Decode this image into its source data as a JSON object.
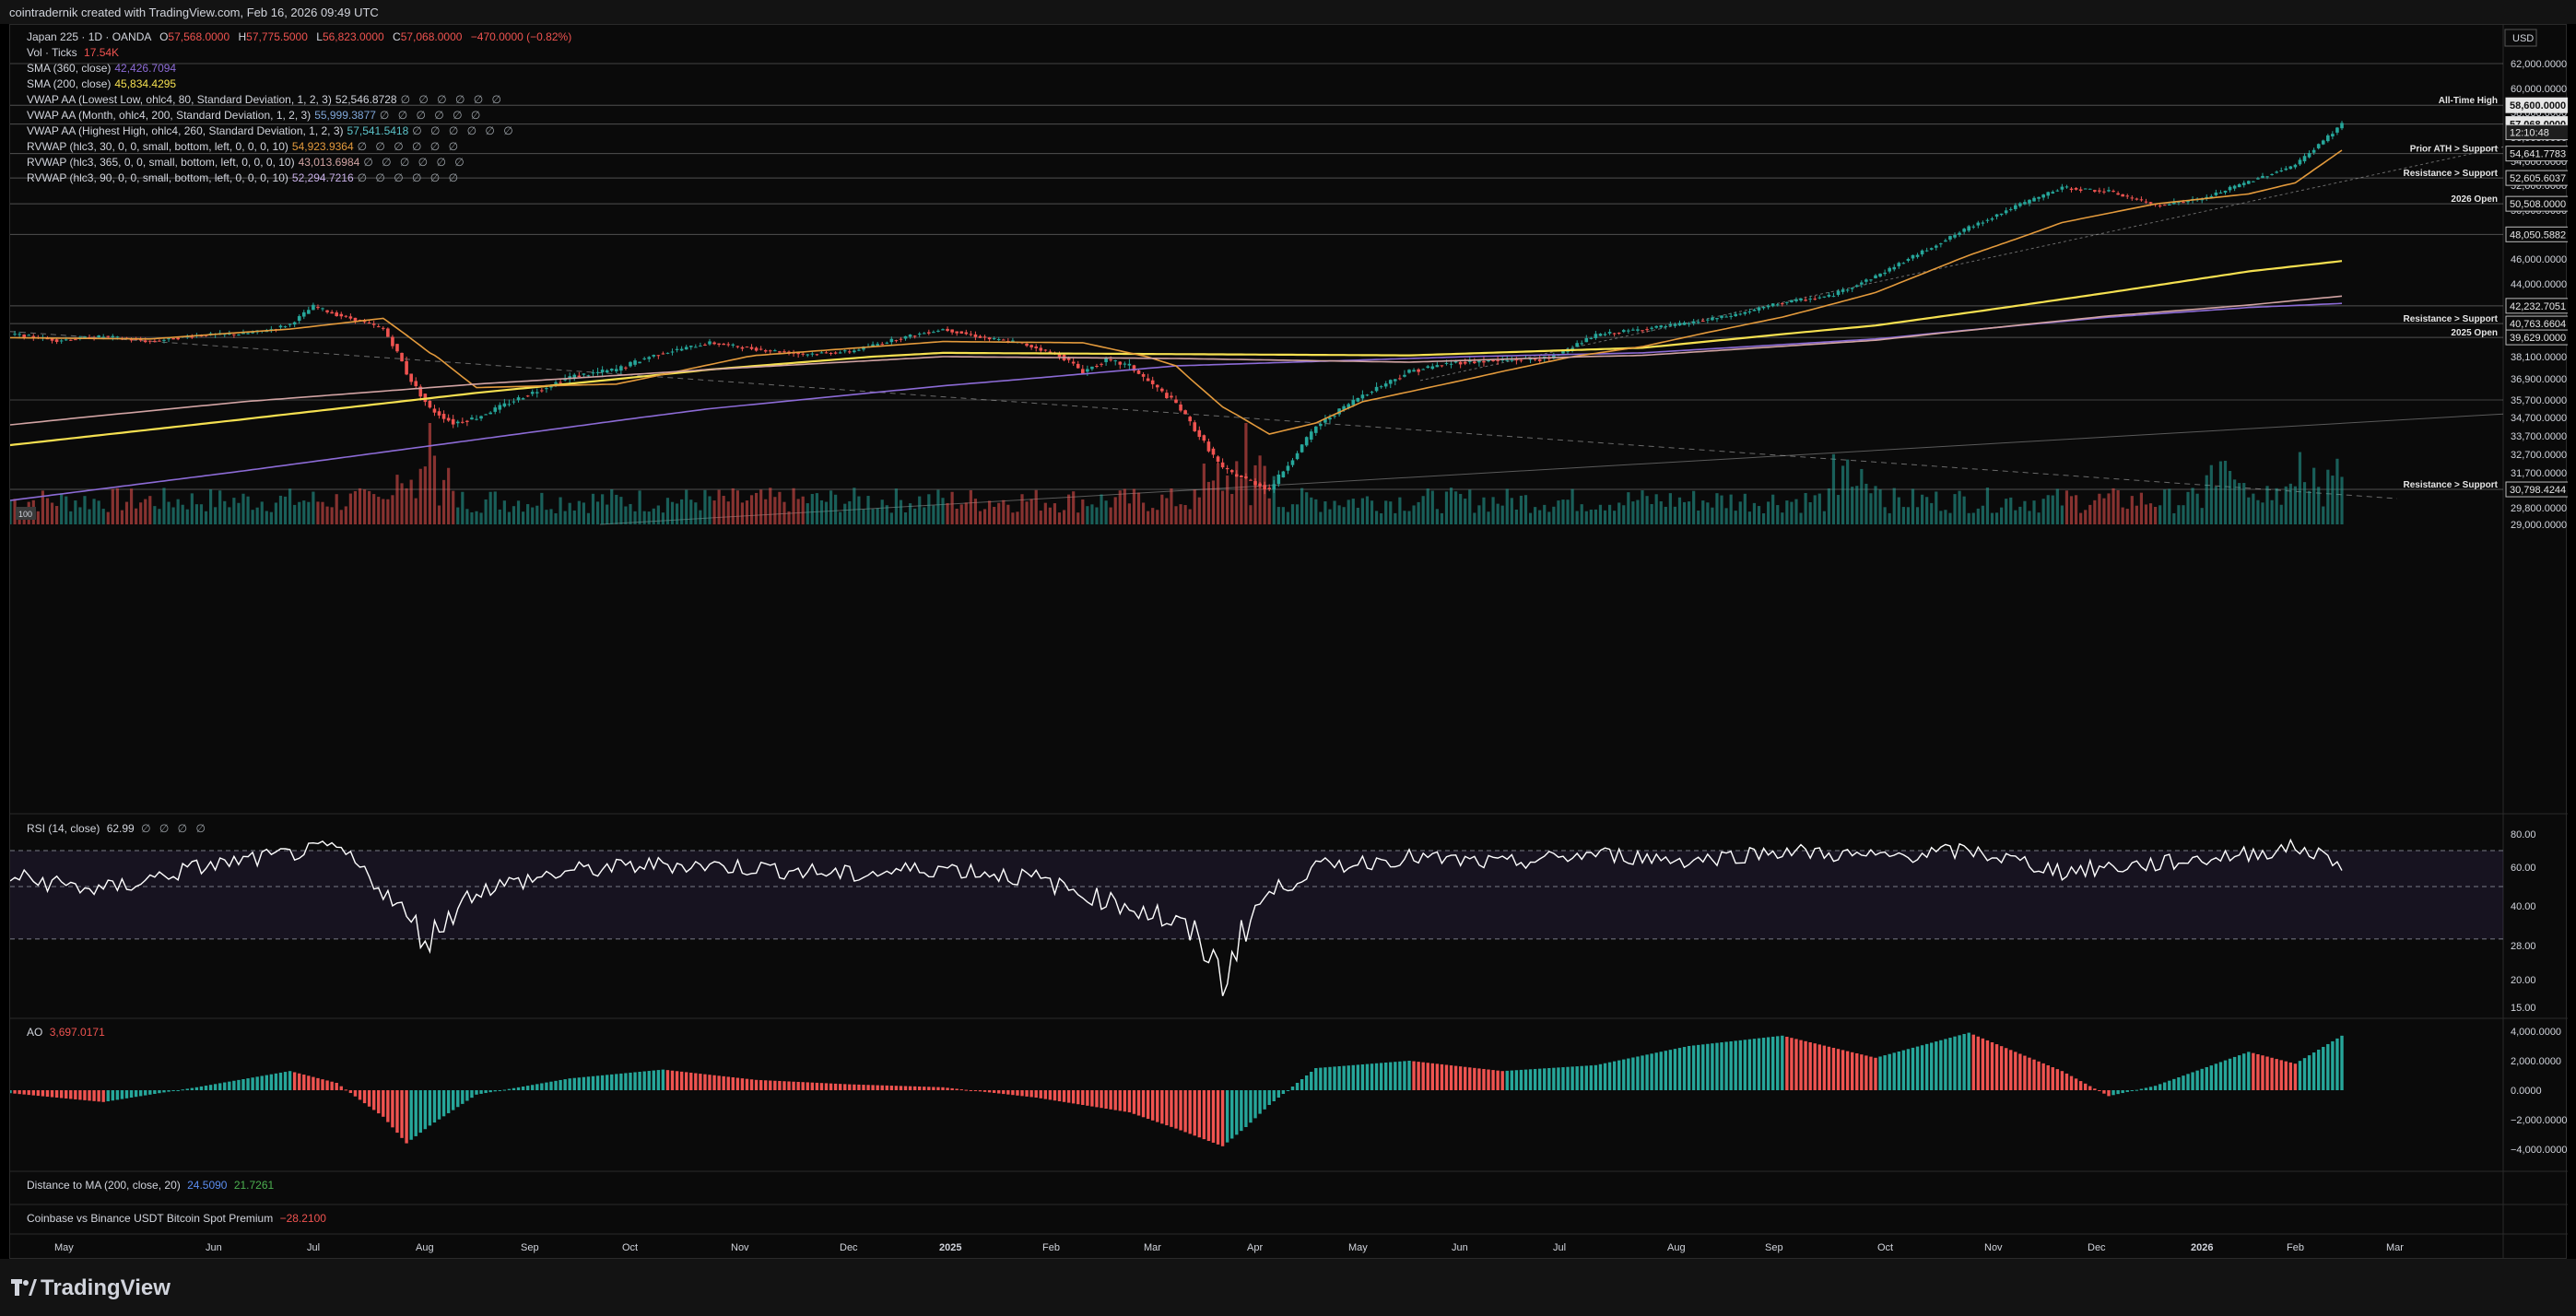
{
  "header": {
    "created": "cointradernik created with TradingView.com, Feb 16, 2026 09:49 UTC"
  },
  "currency": "USD",
  "ohlc": {
    "symbol": "Japan 225 · 1D · OANDA",
    "o_label": "O",
    "o": "57,568.0000",
    "h_label": "H",
    "h": "57,775.5000",
    "l_label": "L",
    "l": "56,823.0000",
    "c_label": "C",
    "c": "57,068.0000",
    "change": "−470.0000 (−0.82%)"
  },
  "vol": {
    "label": "Vol · Ticks",
    "value": "17.54K"
  },
  "indicators": [
    {
      "label": "SMA (360, close)",
      "value": "42,426.7094",
      "color": "#8c6bd6",
      "dots": ""
    },
    {
      "label": "SMA (200, close)",
      "value": "45,834.4295",
      "color": "#f5e050",
      "dots": ""
    },
    {
      "label": "VWAP AA (Lowest Low, ohlc4, 80, Standard Deviation, 1, 2, 3)",
      "value": "52,546.8728",
      "color": "#d1d4dc",
      "dots": "∅ ∅ ∅ ∅ ∅ ∅"
    },
    {
      "label": "VWAP AA (Month, ohlc4, 200, Standard Deviation, 1, 2, 3)",
      "value": "55,999.3877",
      "color": "#7fa6d8",
      "dots": "∅ ∅ ∅ ∅ ∅ ∅"
    },
    {
      "label": "VWAP AA (Highest High, ohlc4, 260, Standard Deviation, 1, 2, 3)",
      "value": "57,541.5418",
      "color": "#5cc3c9",
      "dots": "∅ ∅ ∅ ∅ ∅ ∅"
    },
    {
      "label": "RVWAP (hlc3, 30, 0, 0, small, bottom, left, 0, 0, 0, 10)",
      "value": "54,923.9364",
      "color": "#e39a3c",
      "dots": "∅ ∅ ∅ ∅ ∅ ∅"
    },
    {
      "label": "RVWAP (hlc3, 365, 0, 0, small, bottom, left, 0, 0, 0, 10)",
      "value": "43,013.6984",
      "color": "#d1a3a3",
      "dots": "∅ ∅ ∅ ∅ ∅ ∅"
    },
    {
      "label": "RVWAP (hlc3, 90, 0, 0, small, bottom, left, 0, 0, 0, 10)",
      "value": "52,294.7216",
      "color": "#c8b0e8",
      "dots": "∅ ∅ ∅ ∅ ∅ ∅"
    }
  ],
  "rsi": {
    "label": "RSI (14, close)",
    "value": "62.99",
    "dots": "∅ ∅ ∅ ∅"
  },
  "ao": {
    "label": "AO",
    "value": "3,697.0171"
  },
  "distance_ma": {
    "label": "Distance to MA (200, close, 20)",
    "v1": "24.5090",
    "v2": "21.7261"
  },
  "premium": {
    "label": "Coinbase vs Binance USDT Bitcoin Spot Premium",
    "value": "−28.2100"
  },
  "vol_badge": "100",
  "logo": "TradingView",
  "colors": {
    "up": "#26a69a",
    "down": "#ef5350",
    "sma200": "#f5e050",
    "sma360": "#8c6bd6",
    "rvwap30": "#e39a3c"
  },
  "chart_data": {
    "type": "line",
    "price_axis": [
      "62,000.0000",
      "60,000.0000",
      "58,000.0000",
      "56,000.0000",
      "54,000.0000",
      "52,000.0000",
      "50,000.0000",
      "48,000.0000",
      "46,000.0000",
      "44,000.0000",
      "42,000.0000",
      "40,000.0000",
      "38,100.0000",
      "36,900.0000",
      "35,700.0000",
      "34,700.0000",
      "33,700.0000",
      "32,700.0000",
      "31,700.0000",
      "30,700.0000",
      "29,800.0000",
      "29,000.0000"
    ],
    "price_ticks": [
      62000,
      60000,
      58000,
      56000,
      54000,
      52000,
      50000,
      48000,
      46000,
      44000,
      42000,
      40000,
      38100,
      36900,
      35700,
      34700,
      33700,
      32700,
      31700,
      30700,
      29800,
      29000
    ],
    "rsi_axis": [
      "80.00",
      "60.00",
      "40.00",
      "28.00",
      "20.00",
      "15.00"
    ],
    "rsi_ticks": [
      80,
      60,
      40,
      28,
      20,
      15
    ],
    "ao_axis": [
      "4,000.0000",
      "2,000.0000",
      "0.0000",
      "−2,000.0000",
      "−4,000.0000"
    ],
    "ao_ticks": [
      4000,
      2000,
      0,
      -2000,
      -4000
    ],
    "months": [
      "May",
      "Jun",
      "Jul",
      "Aug",
      "Sep",
      "Oct",
      "Nov",
      "Dec",
      "2025",
      "Feb",
      "Mar",
      "Apr",
      "May",
      "Jun",
      "Jul",
      "Aug",
      "Sep",
      "Oct",
      "Nov",
      "Dec",
      "2026",
      "Feb",
      "Mar"
    ],
    "price_labels": [
      {
        "value": "58,600.0000",
        "y": 58600,
        "tag": "All-Time High",
        "style": "white"
      },
      {
        "value": "57,068.0000",
        "y": 57068,
        "style": "white"
      },
      {
        "value": "12:10:48",
        "y": 56400,
        "style": "timer"
      },
      {
        "value": "54,641.7783",
        "y": 54641.78,
        "tag": "Prior ATH > Support",
        "style": "dark"
      },
      {
        "value": "52,605.6037",
        "y": 52605.6,
        "tag": "Resistance > Support",
        "style": "dark"
      },
      {
        "value": "50,508.0000",
        "y": 50508,
        "tag": "2026 Open",
        "style": "dark"
      },
      {
        "value": "48,050.5882",
        "y": 48050.59,
        "style": "dark"
      },
      {
        "value": "42,232.7051",
        "y": 42232.71,
        "style": "dark"
      },
      {
        "value": "40,763.6604",
        "y": 40763.66,
        "tag": "Resistance > Support",
        "style": "dark"
      },
      {
        "value": "39,629.0000",
        "y": 39629,
        "tag": "2025 Open",
        "style": "dark"
      },
      {
        "value": "30,798.4244",
        "y": 30798.42,
        "tag": "Resistance > Support",
        "style": "dark"
      }
    ],
    "series": [
      {
        "name": "Japan 225",
        "x": [
          0,
          10,
          20,
          30,
          40,
          50,
          55,
          60,
          65,
          70,
          75,
          80,
          85,
          90,
          95,
          100,
          110,
          120,
          130,
          140,
          150,
          160,
          170,
          180,
          190,
          200,
          210,
          215,
          220,
          225,
          230,
          235,
          240,
          250,
          260,
          270,
          280,
          290,
          300,
          310,
          320,
          330,
          340,
          350,
          360,
          370,
          380,
          390,
          400,
          410,
          420,
          430,
          440,
          450,
          460,
          470,
          480,
          490,
          500
        ],
        "close": [
          39900,
          39400,
          39700,
          39300,
          39800,
          39900,
          40200,
          40700,
          42200,
          41500,
          41000,
          40300,
          37200,
          35200,
          34400,
          34700,
          35900,
          37000,
          37400,
          38400,
          39200,
          38700,
          38300,
          38500,
          39500,
          40300,
          39500,
          39300,
          38800,
          38200,
          37300,
          37900,
          37600,
          35500,
          31900,
          30800,
          34200,
          36000,
          37300,
          37800,
          37900,
          38000,
          39800,
          40300,
          40800,
          41500,
          42500,
          43000,
          44600,
          46600,
          48600,
          50300,
          51800,
          51500,
          50400,
          50900,
          52300,
          53700,
          57068
        ]
      },
      {
        "name": "SMA (200, close)",
        "x": [
          0,
          50,
          100,
          150,
          200,
          250,
          300,
          350,
          400,
          450,
          480,
          500
        ],
        "y": [
          33200,
          34600,
          36100,
          37400,
          38400,
          38300,
          38200,
          38800,
          40600,
          43300,
          45000,
          45834
        ]
      },
      {
        "name": "SMA (360, close)",
        "x": [
          0,
          50,
          100,
          150,
          200,
          250,
          300,
          350,
          400,
          450,
          480,
          500
        ],
        "y": [
          30200,
          31800,
          33500,
          35200,
          36500,
          37600,
          38000,
          38400,
          39500,
          41300,
          42100,
          42426
        ]
      },
      {
        "name": "RVWAP (hlc3, 30)",
        "x": [
          0,
          30,
          60,
          80,
          90,
          100,
          130,
          160,
          200,
          230,
          250,
          260,
          270,
          280,
          290,
          320,
          350,
          380,
          400,
          420,
          440,
          460,
          480,
          490,
          500
        ],
        "y": [
          39600,
          39500,
          40300,
          41200,
          38400,
          36400,
          36600,
          38200,
          39300,
          39200,
          37600,
          35300,
          33800,
          34400,
          35600,
          37300,
          38900,
          41300,
          43300,
          46300,
          49000,
          50500,
          51300,
          52200,
          54924
        ]
      },
      {
        "name": "RVWAP (hlc3, 365)",
        "x": [
          0,
          50,
          100,
          150,
          200,
          250,
          300,
          350,
          400,
          450,
          480,
          500
        ],
        "y": [
          34300,
          35600,
          36600,
          37400,
          38100,
          38000,
          37800,
          38200,
          39400,
          41400,
          42300,
          43014
        ]
      }
    ],
    "rsi": {
      "x": [
        0,
        20,
        40,
        60,
        70,
        85,
        90,
        100,
        120,
        140,
        160,
        180,
        200,
        220,
        230,
        245,
        255,
        260,
        265,
        270,
        280,
        300,
        320,
        340,
        360,
        380,
        400,
        420,
        440,
        460,
        480,
        490,
        500
      ],
      "y": [
        55,
        48,
        60,
        68,
        72,
        36,
        30,
        48,
        58,
        62,
        60,
        56,
        60,
        54,
        46,
        38,
        30,
        20,
        34,
        46,
        60,
        66,
        62,
        68,
        64,
        70,
        66,
        70,
        58,
        62,
        68,
        72,
        63
      ]
    },
    "ao": {
      "x": [
        0,
        20,
        40,
        60,
        70,
        80,
        85,
        90,
        100,
        120,
        140,
        160,
        180,
        200,
        220,
        240,
        250,
        260,
        265,
        270,
        280,
        300,
        320,
        340,
        360,
        380,
        400,
        420,
        440,
        450,
        460,
        480,
        490,
        500
      ],
      "y": [
        -200,
        -800,
        200,
        1300,
        500,
        -1800,
        -3600,
        -2400,
        -300,
        800,
        1400,
        700,
        400,
        200,
        -500,
        -1500,
        -2600,
        -3800,
        -2500,
        -1000,
        1500,
        2000,
        1300,
        1700,
        3000,
        3700,
        2200,
        3900,
        1300,
        -400,
        300,
        2600,
        1800,
        3697
      ]
    },
    "volume": {
      "max": 100
    }
  }
}
